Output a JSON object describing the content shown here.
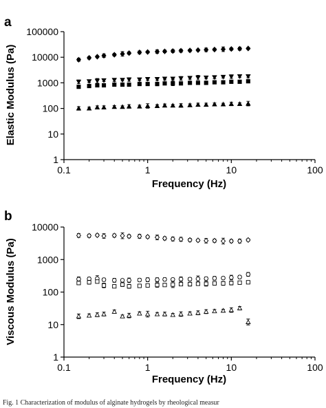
{
  "caption": "Fig. 1 Characterization of modulus of alginate hydrogels by rheological measur",
  "chart_data": [
    {
      "type": "scatter",
      "panel": "a",
      "title": "",
      "xlabel": "Frequency (Hz)",
      "ylabel": "Elastic Modulus (Pa)",
      "xscale": "log",
      "yscale": "log",
      "xlim": [
        0.1,
        100
      ],
      "ylim": [
        1,
        100000
      ],
      "xticks": [
        "0.1",
        "1",
        "10",
        "100"
      ],
      "yticks": [
        "1",
        "10",
        "100",
        "1000",
        "10000",
        "100000"
      ],
      "grid": false,
      "legend": "none",
      "x": [
        0.15,
        0.2,
        0.25,
        0.3,
        0.4,
        0.5,
        0.6,
        0.8,
        1.0,
        1.3,
        1.6,
        2.0,
        2.5,
        3.2,
        4.0,
        5.0,
        6.3,
        8.0,
        10.0,
        12.6,
        15.9
      ],
      "series": [
        {
          "marker": "diamond",
          "filled": true,
          "values": [
            8000,
            9500,
            10500,
            11500,
            12500,
            13500,
            14500,
            15500,
            16000,
            16500,
            17000,
            17500,
            18000,
            18500,
            19000,
            19500,
            20000,
            20500,
            21000,
            21500,
            22000
          ]
        },
        {
          "marker": "triangle-down",
          "filled": true,
          "values": [
            1100,
            1150,
            1200,
            1250,
            1300,
            1300,
            1350,
            1350,
            1400,
            1400,
            1450,
            1450,
            1500,
            1550,
            1600,
            1600,
            1650,
            1700,
            1750,
            1800,
            1800
          ]
        },
        {
          "marker": "square",
          "filled": true,
          "values": [
            700,
            750,
            800,
            800,
            850,
            850,
            850,
            900,
            900,
            900,
            950,
            950,
            950,
            1000,
            1000,
            1000,
            1050,
            1050,
            1100,
            1100,
            1150
          ]
        },
        {
          "marker": "triangle",
          "filled": true,
          "values": [
            100,
            100,
            110,
            110,
            115,
            115,
            120,
            120,
            125,
            125,
            130,
            130,
            130,
            135,
            140,
            140,
            145,
            145,
            150,
            150,
            155
          ]
        }
      ]
    },
    {
      "type": "scatter",
      "panel": "b",
      "title": "",
      "xlabel": "Frequency (Hz)",
      "ylabel": "Viscous Modulus (Pa)",
      "xscale": "log",
      "yscale": "log",
      "xlim": [
        0.1,
        100
      ],
      "ylim": [
        1,
        10000
      ],
      "xticks": [
        "0.1",
        "1",
        "10",
        "100"
      ],
      "yticks": [
        "1",
        "10",
        "100",
        "1000",
        "10000"
      ],
      "grid": false,
      "legend": "none",
      "x": [
        0.15,
        0.2,
        0.25,
        0.3,
        0.4,
        0.5,
        0.6,
        0.8,
        1.0,
        1.3,
        1.6,
        2.0,
        2.5,
        3.2,
        4.0,
        5.0,
        6.3,
        8.0,
        10.0,
        12.6,
        15.9
      ],
      "series": [
        {
          "marker": "diamond",
          "filled": false,
          "values": [
            5500,
            5400,
            5600,
            5300,
            5500,
            5400,
            5200,
            5200,
            5000,
            4800,
            4500,
            4300,
            4200,
            4000,
            3900,
            3800,
            3800,
            3700,
            3700,
            3700,
            4000
          ]
        },
        {
          "marker": "circle",
          "filled": false,
          "values": [
            250,
            255,
            260,
            240,
            230,
            230,
            230,
            235,
            240,
            240,
            245,
            245,
            250,
            250,
            255,
            260,
            265,
            270,
            280,
            290,
            350
          ]
        },
        {
          "marker": "square",
          "filled": false,
          "values": [
            190,
            200,
            210,
            160,
            150,
            170,
            150,
            155,
            160,
            165,
            165,
            170,
            175,
            175,
            180,
            180,
            185,
            185,
            190,
            195,
            200
          ]
        },
        {
          "marker": "triangle",
          "filled": false,
          "values": [
            18,
            19,
            20,
            21,
            25,
            18,
            19,
            22,
            21,
            21,
            21,
            20,
            21,
            22,
            23,
            25,
            26,
            27,
            28,
            32,
            12
          ]
        }
      ]
    }
  ]
}
